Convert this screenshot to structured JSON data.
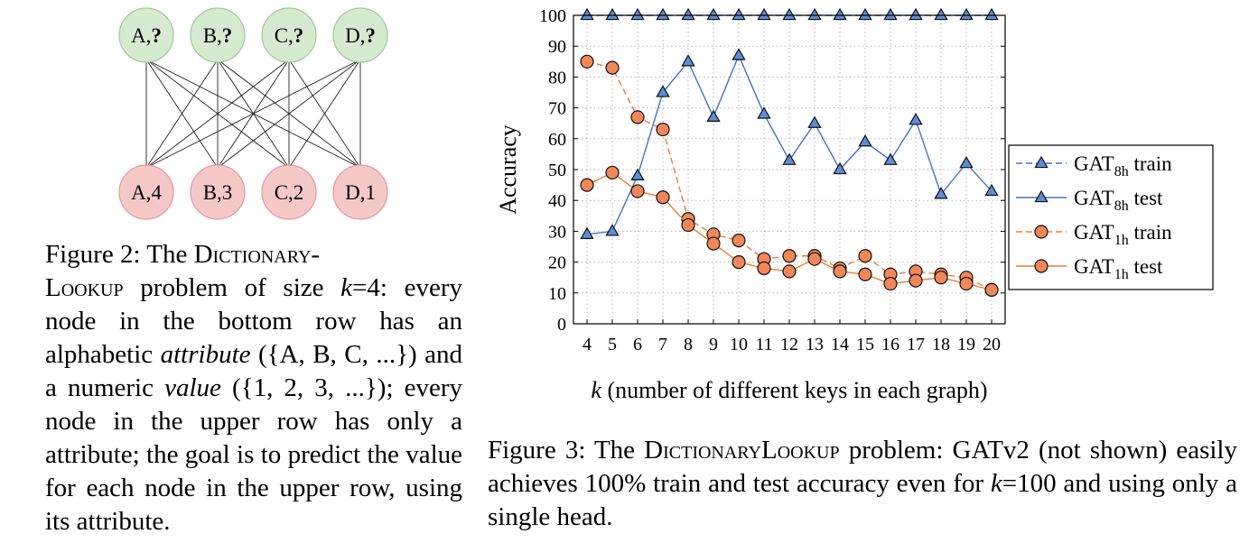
{
  "figure2": {
    "top_nodes": [
      "A,?",
      "B,?",
      "C,?",
      "D,?"
    ],
    "bottom_nodes": [
      "A,4",
      "B,3",
      "C,2",
      "D,1"
    ],
    "colors": {
      "top_fill": "#d6ead1",
      "top_stroke": "#9ccb92",
      "bottom_fill": "#f5c8c8",
      "bottom_stroke": "#e29999"
    },
    "caption": {
      "lead": "Figure 2:  The",
      "name_a": "Dictionary-",
      "name_b": "Lookup",
      "k_var": "k",
      "rest_1": " problem of size ",
      "rest_2": "=4: every node in the bottom row has an alphabetic ",
      "attribute_word": "attribute",
      "rest_3": " ({A, B, C, ...}) and a numeric ",
      "value_word": "value",
      "rest_4": " ({1, 2, 3, ...}); every node in the upper row has only a attribute; the goal is to predict the value for each node in the upper row, using its attribute."
    }
  },
  "figure3": {
    "caption": {
      "lead": "Figure 3: The ",
      "name": "DictionaryLookup",
      "rest_1": " problem: GATv2 (not shown) easily achieves 100% train and test accuracy even for ",
      "k_var": "k",
      "rest_2": "=100 and using only a single head."
    }
  },
  "chart_data": {
    "type": "line",
    "xlabel": "k (number of different keys in each graph)",
    "ylabel": "Accuracy",
    "x": [
      4,
      5,
      6,
      7,
      8,
      9,
      10,
      11,
      12,
      13,
      14,
      15,
      16,
      17,
      18,
      19,
      20
    ],
    "xlim": [
      4,
      20
    ],
    "ylim": [
      0,
      100
    ],
    "yticks": [
      0,
      10,
      20,
      30,
      40,
      50,
      60,
      70,
      80,
      90,
      100
    ],
    "grid": true,
    "legend_position": "right",
    "series": [
      {
        "name": "GAT8h train",
        "name_base": "GAT",
        "name_sub": "8h",
        "name_tail": " train",
        "marker": "triangle",
        "dashed": true,
        "line_color": "#4472c4",
        "marker_fill": "#5b8ed6",
        "values": [
          100,
          100,
          100,
          100,
          100,
          100,
          100,
          100,
          100,
          100,
          100,
          100,
          100,
          100,
          100,
          100,
          100
        ]
      },
      {
        "name": "GAT8h test",
        "name_base": "GAT",
        "name_sub": "8h",
        "name_tail": " test",
        "marker": "triangle",
        "dashed": false,
        "line_color": "#4472c4",
        "marker_fill": "#5b8ed6",
        "values": [
          29,
          30,
          48,
          75,
          85,
          67,
          87,
          68,
          53,
          65,
          50,
          59,
          53,
          66,
          42,
          52,
          43
        ]
      },
      {
        "name": "GAT1h train",
        "name_base": "GAT",
        "name_sub": "1h",
        "name_tail": " train",
        "marker": "circle",
        "dashed": true,
        "line_color": "#ed7d31",
        "marker_fill": "#f0875a",
        "values": [
          85,
          83,
          67,
          63,
          34,
          29,
          27,
          21,
          22,
          22,
          18,
          22,
          16,
          17,
          16,
          15,
          11
        ]
      },
      {
        "name": "GAT1h test",
        "name_base": "GAT",
        "name_sub": "1h",
        "name_tail": " test",
        "marker": "circle",
        "dashed": false,
        "line_color": "#ed7d31",
        "marker_fill": "#f0875a",
        "values": [
          45,
          49,
          43,
          41,
          32,
          26,
          20,
          18,
          17,
          21,
          17,
          16,
          13,
          14,
          15,
          13,
          11
        ]
      }
    ]
  }
}
